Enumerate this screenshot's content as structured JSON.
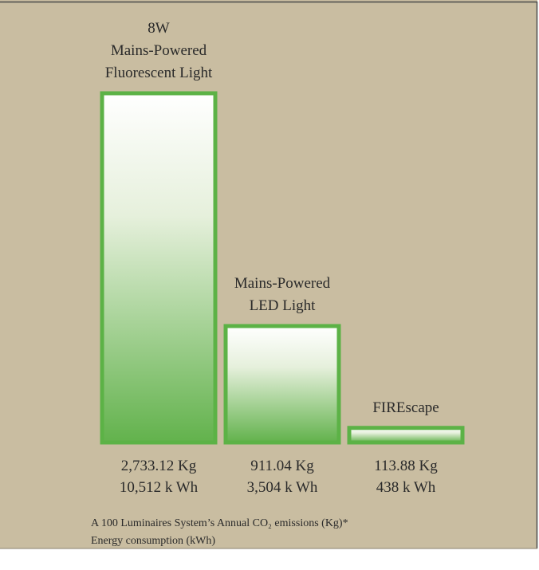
{
  "chart_data": {
    "type": "bar",
    "categories": [
      [
        "8W",
        "Mains-Powered",
        "Fluorescent Light"
      ],
      [
        "Mains-Powered",
        "LED Light"
      ],
      [
        "FIREscape"
      ]
    ],
    "series": [
      {
        "name": "A 100 Luminaires System’s Annual CO₂ emissions (Kg)*",
        "color": "#5cb246",
        "values": [
          2733.12,
          911.04,
          113.88
        ],
        "value_labels": [
          "2,733.12 Kg",
          "911.04 Kg",
          "113.88 Kg"
        ]
      },
      {
        "name": "Energy consumption (kWh)",
        "values": [
          10512,
          3504,
          438
        ],
        "value_labels": [
          "10,512 k Wh",
          "3,504 k Wh",
          "438 k Wh"
        ]
      }
    ]
  }
}
